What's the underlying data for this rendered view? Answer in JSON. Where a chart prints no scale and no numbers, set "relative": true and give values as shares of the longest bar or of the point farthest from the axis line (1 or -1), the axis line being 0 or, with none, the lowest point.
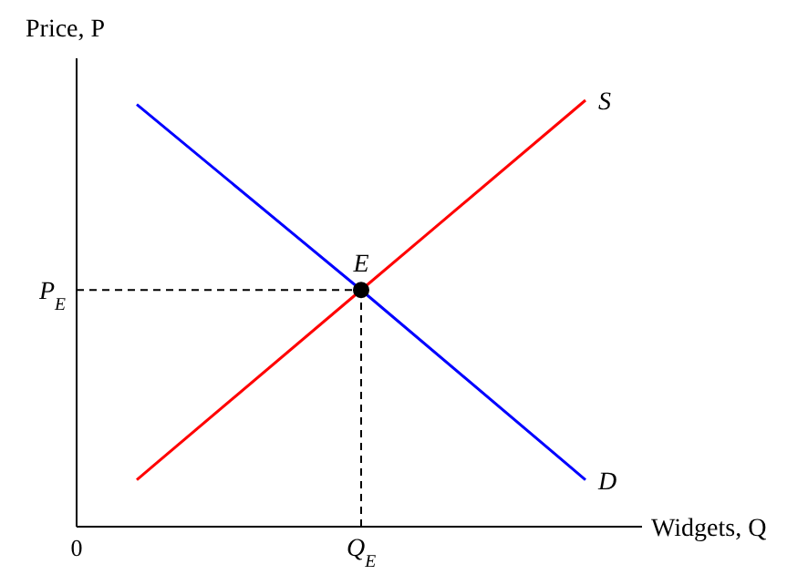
{
  "chart_data": {
    "type": "line",
    "relative": true,
    "xlabel": "Widgets, Q",
    "ylabel": "Price, P",
    "categories": [
      null,
      null,
      null
    ],
    "series": [
      {
        "name": "S",
        "color": "#ff0000",
        "values": [
          0.11,
          0.555,
          1
        ]
      },
      {
        "name": "D",
        "color": "#0000ff",
        "values": [
          0.99,
          0.555,
          0.11
        ]
      }
    ],
    "marker": "none",
    "line_style": "solid",
    "ref_lines": [
      {
        "axis": "y",
        "value": 0.555,
        "label": "P$_{E}$",
        "color": "#000000",
        "line_style": "dashed"
      }
    ],
    "annotations": [
      {
        "text": "E",
        "y": 0.555
      },
      "Q$_{E}$",
      "0"
    ]
  }
}
